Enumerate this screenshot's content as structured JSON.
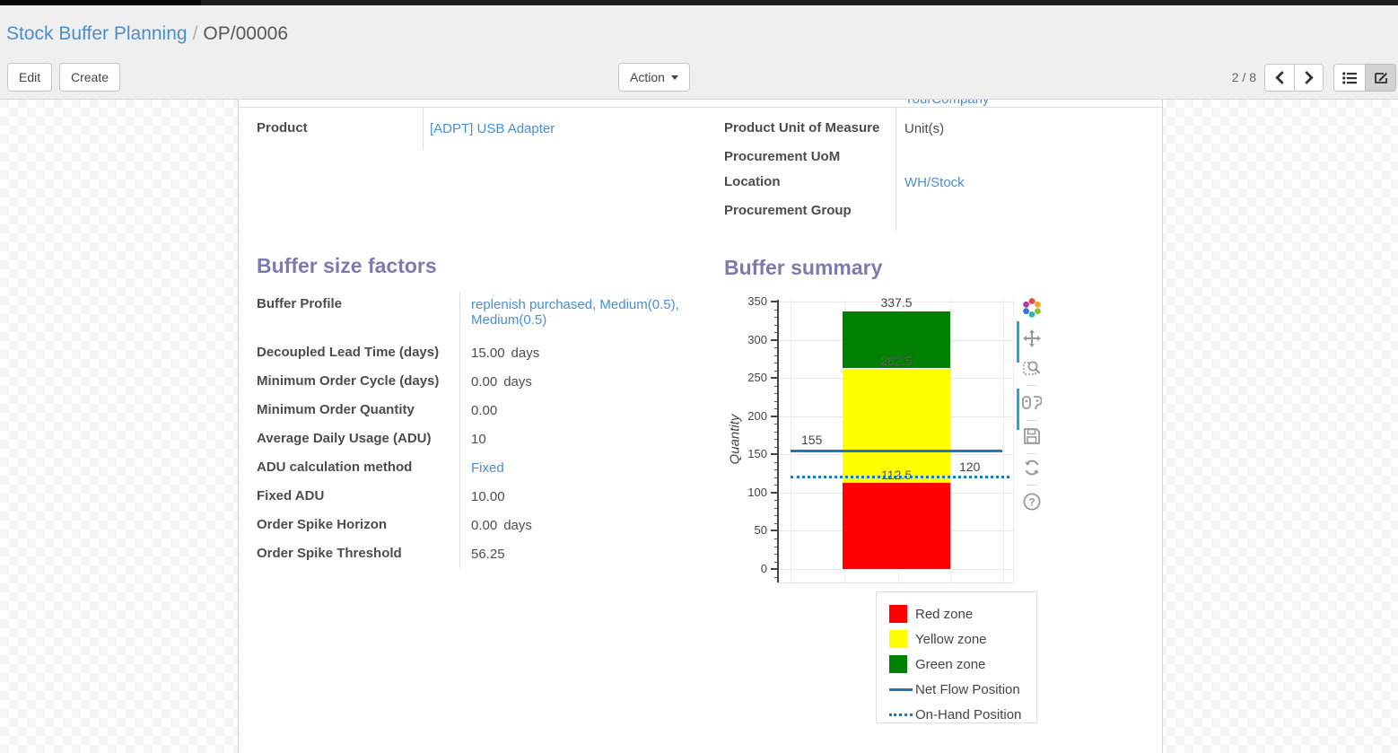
{
  "breadcrumb": {
    "parent": "Stock Buffer Planning",
    "separator": "/",
    "current": "OP/00006"
  },
  "toolbar": {
    "edit_label": "Edit",
    "create_label": "Create",
    "action_label": "Action",
    "pager": "2 / 8",
    "icons": [
      "chevron-left-icon",
      "chevron-right-icon",
      "list-view-icon",
      "form-view-icon"
    ]
  },
  "form": {
    "clipped_row_value": "YourCompany",
    "left_fields": [
      {
        "label": "Product",
        "value": "[ADPT] USB Adapter",
        "link": true
      }
    ],
    "right_fields": [
      {
        "label": "Product Unit of Measure",
        "value": "Unit(s)",
        "link": false
      },
      {
        "label": "Procurement UoM",
        "value": "",
        "link": false
      },
      {
        "label": "Location",
        "value": "WH/Stock",
        "link": true
      },
      {
        "label": "Procurement Group",
        "value": "",
        "link": false
      }
    ],
    "buffer_factors": {
      "title": "Buffer size factors",
      "fields": [
        {
          "label": "Buffer Profile",
          "value": "replenish purchased, Medium(0.5), Medium(0.5)",
          "link": true,
          "suffix": ""
        },
        {
          "label": "Decoupled Lead Time (days)",
          "value": "15.00",
          "link": false,
          "suffix": "days"
        },
        {
          "label": "Minimum Order Cycle (days)",
          "value": "0.00",
          "link": false,
          "suffix": "days"
        },
        {
          "label": "Minimum Order Quantity",
          "value": "0.00",
          "link": false,
          "suffix": ""
        },
        {
          "label": "Average Daily Usage (ADU)",
          "value": "10",
          "link": false,
          "suffix": ""
        },
        {
          "label": "ADU calculation method",
          "value": "Fixed",
          "link": true,
          "suffix": ""
        },
        {
          "label": "Fixed ADU",
          "value": "10.00",
          "link": false,
          "suffix": ""
        },
        {
          "label": "Order Spike Horizon",
          "value": "0.00",
          "link": false,
          "suffix": "days"
        },
        {
          "label": "Order Spike Threshold",
          "value": "56.25",
          "link": false,
          "suffix": ""
        }
      ]
    },
    "buffer_summary_title": "Buffer summary"
  },
  "chart_data": {
    "type": "bar",
    "title": "Buffer summary",
    "xlabel": "",
    "ylabel": "Quantity",
    "ylim": [
      0,
      350
    ],
    "yticks": [
      0,
      50,
      100,
      150,
      200,
      250,
      300,
      350
    ],
    "grid": true,
    "legend_position": "bottom-right",
    "series": [
      {
        "name": "Red zone",
        "kind": "bar-segment",
        "from": 0,
        "to": 112.5,
        "color": "#ff0000"
      },
      {
        "name": "Yellow zone",
        "kind": "bar-segment",
        "from": 112.5,
        "to": 262.5,
        "color": "#ffff00"
      },
      {
        "name": "Green zone",
        "kind": "bar-segment",
        "from": 262.5,
        "to": 337.5,
        "color": "#008000"
      },
      {
        "name": "Net Flow Position",
        "kind": "hline",
        "value": 155,
        "style": "solid",
        "color": "#1f77b4"
      },
      {
        "name": "On-Hand Position",
        "kind": "hline",
        "value": 120,
        "style": "dotted",
        "color": "#1f77b4"
      }
    ],
    "bar_value_labels": [
      "337.5",
      "262.5",
      "112.5"
    ],
    "line_value_labels": [
      "155",
      "120"
    ],
    "modebar_icons": [
      "plotly-logo-icon",
      "pan-icon",
      "zoom-box-icon",
      "compare-hover-icon",
      "save-icon",
      "reset-axes-icon",
      "help-icon"
    ]
  }
}
